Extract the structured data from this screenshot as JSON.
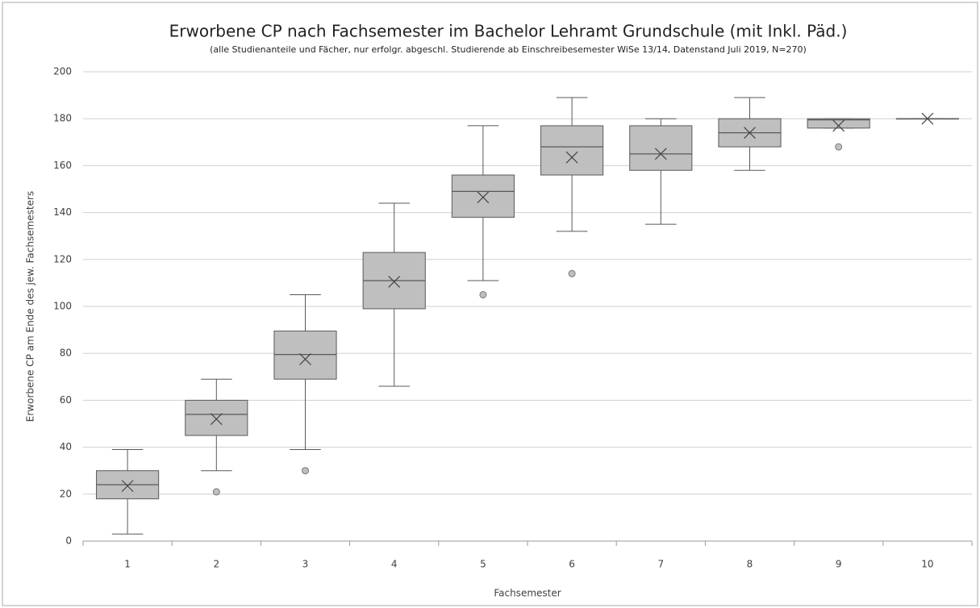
{
  "chart_data": {
    "type": "box",
    "title": "Erworbene CP nach Fachsemester im Bachelor Lehramt Grundschule (mit Inkl. Päd.)",
    "subtitle": "(alle Studienanteile und Fächer, nur erfolgr. abgeschl. Studierende ab Einschreibesemester WiSe 13/14, Datenstand Juli 2019, N=270)",
    "x_label": "Fachsemester",
    "y_label": "Erworbene CP am Ende des jew. Fachsemesters",
    "categories": [
      "1",
      "2",
      "3",
      "4",
      "5",
      "6",
      "7",
      "8",
      "9",
      "10"
    ],
    "color": "#bfbfbf",
    "ylim": [
      0,
      200
    ],
    "yticks": [
      0,
      20,
      40,
      60,
      80,
      100,
      120,
      140,
      160,
      180,
      200
    ],
    "grid": true,
    "boxes": [
      {
        "min": 3,
        "q1": 18,
        "median": 24,
        "q3": 30,
        "max": 39,
        "mean": 23.5,
        "outliers": []
      },
      {
        "min": 30,
        "q1": 45,
        "median": 54,
        "q3": 60,
        "max": 69,
        "mean": 52,
        "outliers": [
          21
        ]
      },
      {
        "min": 39,
        "q1": 69,
        "median": 79.5,
        "q3": 89.5,
        "max": 105,
        "mean": 77.5,
        "outliers": [
          30
        ]
      },
      {
        "min": 66,
        "q1": 99,
        "median": 111,
        "q3": 123,
        "max": 144,
        "mean": 110.5,
        "outliers": []
      },
      {
        "min": 111,
        "q1": 138,
        "median": 149,
        "q3": 156,
        "max": 177,
        "mean": 146.5,
        "outliers": [
          105
        ]
      },
      {
        "min": 132,
        "q1": 156,
        "median": 168,
        "q3": 177,
        "max": 189,
        "mean": 163.5,
        "outliers": [
          114
        ]
      },
      {
        "min": 135,
        "q1": 158,
        "median": 165,
        "q3": 177,
        "max": 180,
        "mean": 165,
        "outliers": []
      },
      {
        "min": 158,
        "q1": 168,
        "median": 174,
        "q3": 180,
        "max": 189,
        "mean": 174,
        "outliers": []
      },
      {
        "min": 176,
        "q1": 176,
        "median": 179.5,
        "q3": 180,
        "max": 180,
        "mean": 177,
        "outliers": [
          168
        ]
      },
      {
        "min": 180,
        "q1": 180,
        "median": 180,
        "q3": 180,
        "max": 180,
        "mean": 180,
        "outliers": []
      }
    ]
  }
}
